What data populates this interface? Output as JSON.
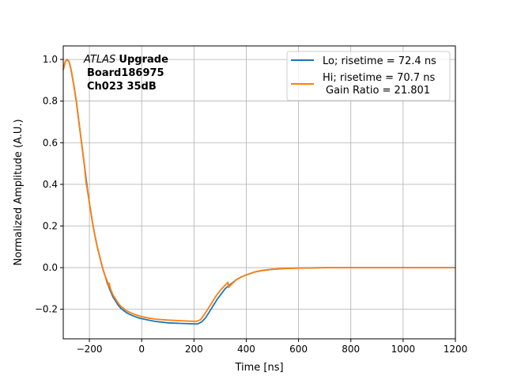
{
  "chart_data": {
    "type": "line",
    "xlabel": "Time [ns]",
    "ylabel": "Normalized Amplitude (A.U.)",
    "xlim": [
      -300,
      1200
    ],
    "ylim": [
      -0.342,
      1.065
    ],
    "xticks": [
      -200,
      0,
      200,
      400,
      600,
      800,
      1000,
      1200
    ],
    "xtick_labels": [
      "−200",
      "0",
      "200",
      "400",
      "600",
      "800",
      "1000",
      "1200"
    ],
    "yticks": [
      -0.2,
      0.0,
      0.2,
      0.4,
      0.6,
      0.8,
      1.0
    ],
    "ytick_labels": [
      "−0.2",
      "0.0",
      "0.2",
      "0.4",
      "0.6",
      "0.8",
      "1.0"
    ],
    "grid": true,
    "legend_position": "top-right",
    "annotation": {
      "italic": "ATLAS",
      "bold": "Upgrade",
      "line2": "Board186975",
      "line3": "Ch023 35dB"
    },
    "legend_extra": "Gain Ratio = 21.801",
    "series": [
      {
        "name": "Lo; risetime = 72.4 ns",
        "color": "#1f77b4",
        "x": [
          -300,
          -292,
          -285,
          -278,
          -270,
          -260,
          -250,
          -240,
          -230,
          -220,
          -210,
          -200,
          -190,
          -180,
          -170,
          -160,
          -150,
          -140,
          -130,
          -120,
          -110,
          -100,
          -90,
          -80,
          -70,
          -60,
          -50,
          -40,
          -30,
          -15,
          0,
          25,
          50,
          100,
          150,
          200,
          215,
          230,
          245,
          260,
          275,
          290,
          305,
          320,
          340,
          360,
          380,
          400,
          430,
          460,
          500,
          550,
          600,
          700,
          800,
          1000,
          1200
        ],
        "y": [
          0.95,
          0.99,
          1.0,
          0.99,
          0.95,
          0.88,
          0.8,
          0.7,
          0.6,
          0.5,
          0.4,
          0.31,
          0.23,
          0.16,
          0.1,
          0.05,
          0.0,
          -0.04,
          -0.08,
          -0.11,
          -0.14,
          -0.16,
          -0.18,
          -0.195,
          -0.205,
          -0.215,
          -0.222,
          -0.228,
          -0.233,
          -0.24,
          -0.245,
          -0.252,
          -0.258,
          -0.265,
          -0.268,
          -0.27,
          -0.27,
          -0.26,
          -0.24,
          -0.21,
          -0.18,
          -0.15,
          -0.125,
          -0.1,
          -0.08,
          -0.06,
          -0.045,
          -0.035,
          -0.022,
          -0.014,
          -0.008,
          -0.004,
          -0.002,
          0.0,
          0.0,
          0.0,
          0.0
        ]
      },
      {
        "name": "Hi; risetime = 70.7 ns",
        "color": "#ff7f0e",
        "x": [
          -300,
          -292,
          -285,
          -278,
          -270,
          -260,
          -250,
          -240,
          -230,
          -220,
          -215,
          -212,
          -210,
          -200,
          -190,
          -180,
          -170,
          -160,
          -150,
          -140,
          -130,
          -127,
          -124,
          -120,
          -110,
          -100,
          -90,
          -80,
          -70,
          -60,
          -50,
          -40,
          -30,
          -15,
          0,
          25,
          50,
          100,
          150,
          200,
          210,
          225,
          240,
          255,
          270,
          285,
          300,
          315,
          330,
          332,
          340,
          360,
          380,
          400,
          430,
          460,
          500,
          550,
          600,
          700,
          800,
          1000,
          1200
        ],
        "y": [
          0.95,
          0.99,
          1.0,
          0.99,
          0.95,
          0.88,
          0.8,
          0.7,
          0.6,
          0.5,
          0.44,
          0.4,
          0.39,
          0.31,
          0.23,
          0.16,
          0.1,
          0.05,
          0.0,
          -0.04,
          -0.07,
          -0.09,
          -0.075,
          -0.1,
          -0.13,
          -0.15,
          -0.17,
          -0.185,
          -0.195,
          -0.205,
          -0.212,
          -0.218,
          -0.223,
          -0.23,
          -0.235,
          -0.242,
          -0.247,
          -0.252,
          -0.255,
          -0.258,
          -0.258,
          -0.25,
          -0.225,
          -0.195,
          -0.165,
          -0.135,
          -0.11,
          -0.09,
          -0.07,
          -0.095,
          -0.085,
          -0.06,
          -0.045,
          -0.035,
          -0.022,
          -0.014,
          -0.008,
          -0.004,
          -0.002,
          0.0,
          0.0,
          0.0,
          0.0
        ]
      }
    ]
  }
}
